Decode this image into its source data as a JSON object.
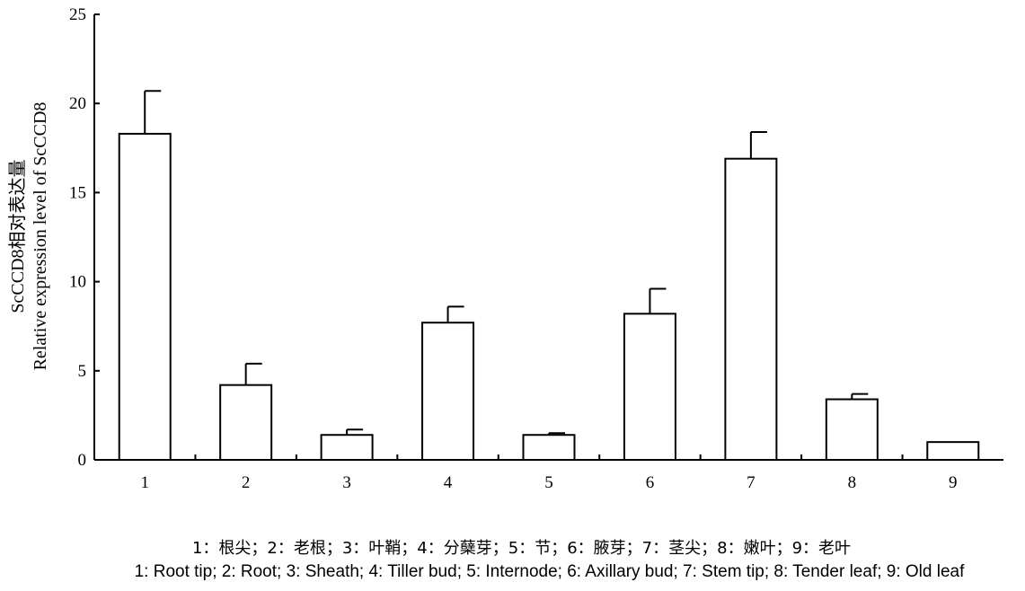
{
  "chart_data": {
    "type": "bar",
    "categories": [
      "1",
      "2",
      "3",
      "4",
      "5",
      "6",
      "7",
      "8",
      "9"
    ],
    "values": [
      18.3,
      4.2,
      1.4,
      7.7,
      1.4,
      8.2,
      16.9,
      3.4,
      1.0
    ],
    "errors": [
      2.4,
      1.2,
      0.3,
      0.9,
      0.1,
      1.4,
      1.5,
      0.3,
      0.0
    ],
    "title": "",
    "xlabel": "",
    "ylabel_line1": "ScCCD8相对表达量",
    "ylabel_line2": "Relative expression level of ScCCD8",
    "ylim": [
      0,
      25
    ],
    "yticks": [
      0,
      5,
      10,
      15,
      20,
      25
    ],
    "grid": false,
    "bar_fill": "#ffffff",
    "bar_stroke": "#000000"
  },
  "caption": {
    "chinese": "1：根尖；2：老根；3：叶鞘；4：分蘖芽；5：节；6：腋芽；7：茎尖；8：嫩叶；9：老叶",
    "english": "1: Root tip; 2: Root; 3: Sheath; 4: Tiller bud; 5: Internode; 6: Axillary bud; 7: Stem tip; 8: Tender leaf; 9: Old leaf"
  }
}
